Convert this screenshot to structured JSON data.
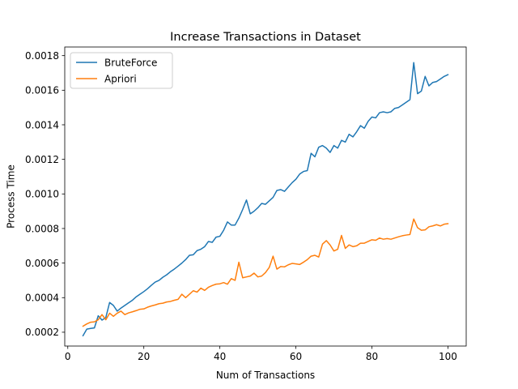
{
  "chart_data": {
    "type": "line",
    "title": "Increase Transactions in Dataset",
    "xlabel": "Num of Transactions",
    "ylabel": "Process Time",
    "xlim": [
      -0.8,
      104.8
    ],
    "ylim": [
      0.00012,
      0.00185
    ],
    "xticks": [
      0,
      20,
      40,
      60,
      80,
      100
    ],
    "yticks": [
      0.0002,
      0.0004,
      0.0006,
      0.0008,
      0.001,
      0.0012,
      0.0014,
      0.0016,
      0.0018
    ],
    "xtick_labels": [
      "0",
      "20",
      "40",
      "60",
      "80",
      "100"
    ],
    "ytick_labels": [
      "0.0002",
      "0.0004",
      "0.0006",
      "0.0008",
      "0.0010",
      "0.0012",
      "0.0014",
      "0.0016",
      "0.0018"
    ],
    "grid": false,
    "legend": "top-left",
    "series": [
      {
        "name": "BruteForce",
        "color": "#1f77b4",
        "x": [
          4,
          5,
          6,
          7,
          8,
          9,
          10,
          11,
          12,
          13,
          14,
          15,
          16,
          17,
          18,
          19,
          20,
          21,
          22,
          23,
          24,
          25,
          26,
          27,
          28,
          29,
          30,
          31,
          32,
          33,
          34,
          35,
          36,
          37,
          38,
          39,
          40,
          41,
          42,
          43,
          44,
          45,
          46,
          47,
          48,
          49,
          50,
          51,
          52,
          53,
          54,
          55,
          56,
          57,
          58,
          59,
          60,
          61,
          62,
          63,
          64,
          65,
          66,
          67,
          68,
          69,
          70,
          71,
          72,
          73,
          74,
          75,
          76,
          77,
          78,
          79,
          80,
          81,
          82,
          83,
          84,
          85,
          86,
          87,
          88,
          89,
          90,
          91,
          92,
          93,
          94,
          95,
          96,
          97,
          98,
          99,
          100
        ],
        "values": [
          0.00018,
          0.000218,
          0.000222,
          0.000225,
          0.000295,
          0.00027,
          0.000285,
          0.000372,
          0.000355,
          0.000322,
          0.00034,
          0.000355,
          0.00037,
          0.000385,
          0.000405,
          0.00042,
          0.000435,
          0.000452,
          0.000472,
          0.00049,
          0.0005,
          0.000518,
          0.000532,
          0.00055,
          0.000565,
          0.000582,
          0.0006,
          0.00062,
          0.000645,
          0.000648,
          0.000672,
          0.00068,
          0.000695,
          0.000725,
          0.00072,
          0.00075,
          0.000755,
          0.00079,
          0.000838,
          0.00082,
          0.00082,
          0.00086,
          0.00091,
          0.000965,
          0.000885,
          0.0009,
          0.00092,
          0.000945,
          0.00094,
          0.00096,
          0.00098,
          0.00102,
          0.001025,
          0.001015,
          0.00104,
          0.001065,
          0.001085,
          0.001115,
          0.00113,
          0.001135,
          0.001235,
          0.001215,
          0.00127,
          0.00128,
          0.001265,
          0.00124,
          0.00128,
          0.001265,
          0.00131,
          0.0013,
          0.001345,
          0.00133,
          0.00136,
          0.001395,
          0.00138,
          0.00142,
          0.001445,
          0.00144,
          0.00147,
          0.001475,
          0.00147,
          0.001475,
          0.001495,
          0.0015,
          0.001515,
          0.00153,
          0.001545,
          0.00176,
          0.00158,
          0.001595,
          0.00168,
          0.001625,
          0.001645,
          0.00165,
          0.001665,
          0.00168,
          0.00169
        ]
      },
      {
        "name": "Apriori",
        "color": "#ff7f0e",
        "x": [
          4,
          5,
          6,
          7,
          8,
          9,
          10,
          11,
          12,
          13,
          14,
          15,
          16,
          17,
          18,
          19,
          20,
          21,
          22,
          23,
          24,
          25,
          26,
          27,
          28,
          29,
          30,
          31,
          32,
          33,
          34,
          35,
          36,
          37,
          38,
          39,
          40,
          41,
          42,
          43,
          44,
          45,
          46,
          47,
          48,
          49,
          50,
          51,
          52,
          53,
          54,
          55,
          56,
          57,
          58,
          59,
          60,
          61,
          62,
          63,
          64,
          65,
          66,
          67,
          68,
          69,
          70,
          71,
          72,
          73,
          74,
          75,
          76,
          77,
          78,
          79,
          80,
          81,
          82,
          83,
          84,
          85,
          86,
          87,
          88,
          89,
          90,
          91,
          92,
          93,
          94,
          95,
          96,
          97,
          98,
          99,
          100
        ],
        "values": [
          0.000235,
          0.000248,
          0.000258,
          0.00026,
          0.000272,
          0.000302,
          0.000272,
          0.00031,
          0.000292,
          0.00031,
          0.000322,
          0.000302,
          0.000312,
          0.000318,
          0.000325,
          0.000333,
          0.000335,
          0.000345,
          0.000352,
          0.000358,
          0.000365,
          0.000368,
          0.000375,
          0.000378,
          0.000385,
          0.00039,
          0.00042,
          0.0004,
          0.00042,
          0.00044,
          0.000432,
          0.000455,
          0.000442,
          0.00046,
          0.00047,
          0.000478,
          0.00048,
          0.000487,
          0.000478,
          0.00051,
          0.0005,
          0.000605,
          0.000515,
          0.00052,
          0.000525,
          0.000542,
          0.00052,
          0.000525,
          0.000545,
          0.000575,
          0.00064,
          0.000565,
          0.00058,
          0.000578,
          0.00059,
          0.000598,
          0.000595,
          0.000592,
          0.000605,
          0.00062,
          0.00064,
          0.000645,
          0.000635,
          0.00071,
          0.00073,
          0.000705,
          0.00067,
          0.00068,
          0.00076,
          0.000685,
          0.000705,
          0.000695,
          0.0007,
          0.000715,
          0.000715,
          0.000725,
          0.000735,
          0.000732,
          0.000745,
          0.000738,
          0.000742,
          0.000738,
          0.000745,
          0.000752,
          0.000758,
          0.000762,
          0.000765,
          0.000855,
          0.000805,
          0.00079,
          0.000792,
          0.00081,
          0.000815,
          0.000822,
          0.000815,
          0.000825,
          0.000828
        ]
      }
    ]
  }
}
